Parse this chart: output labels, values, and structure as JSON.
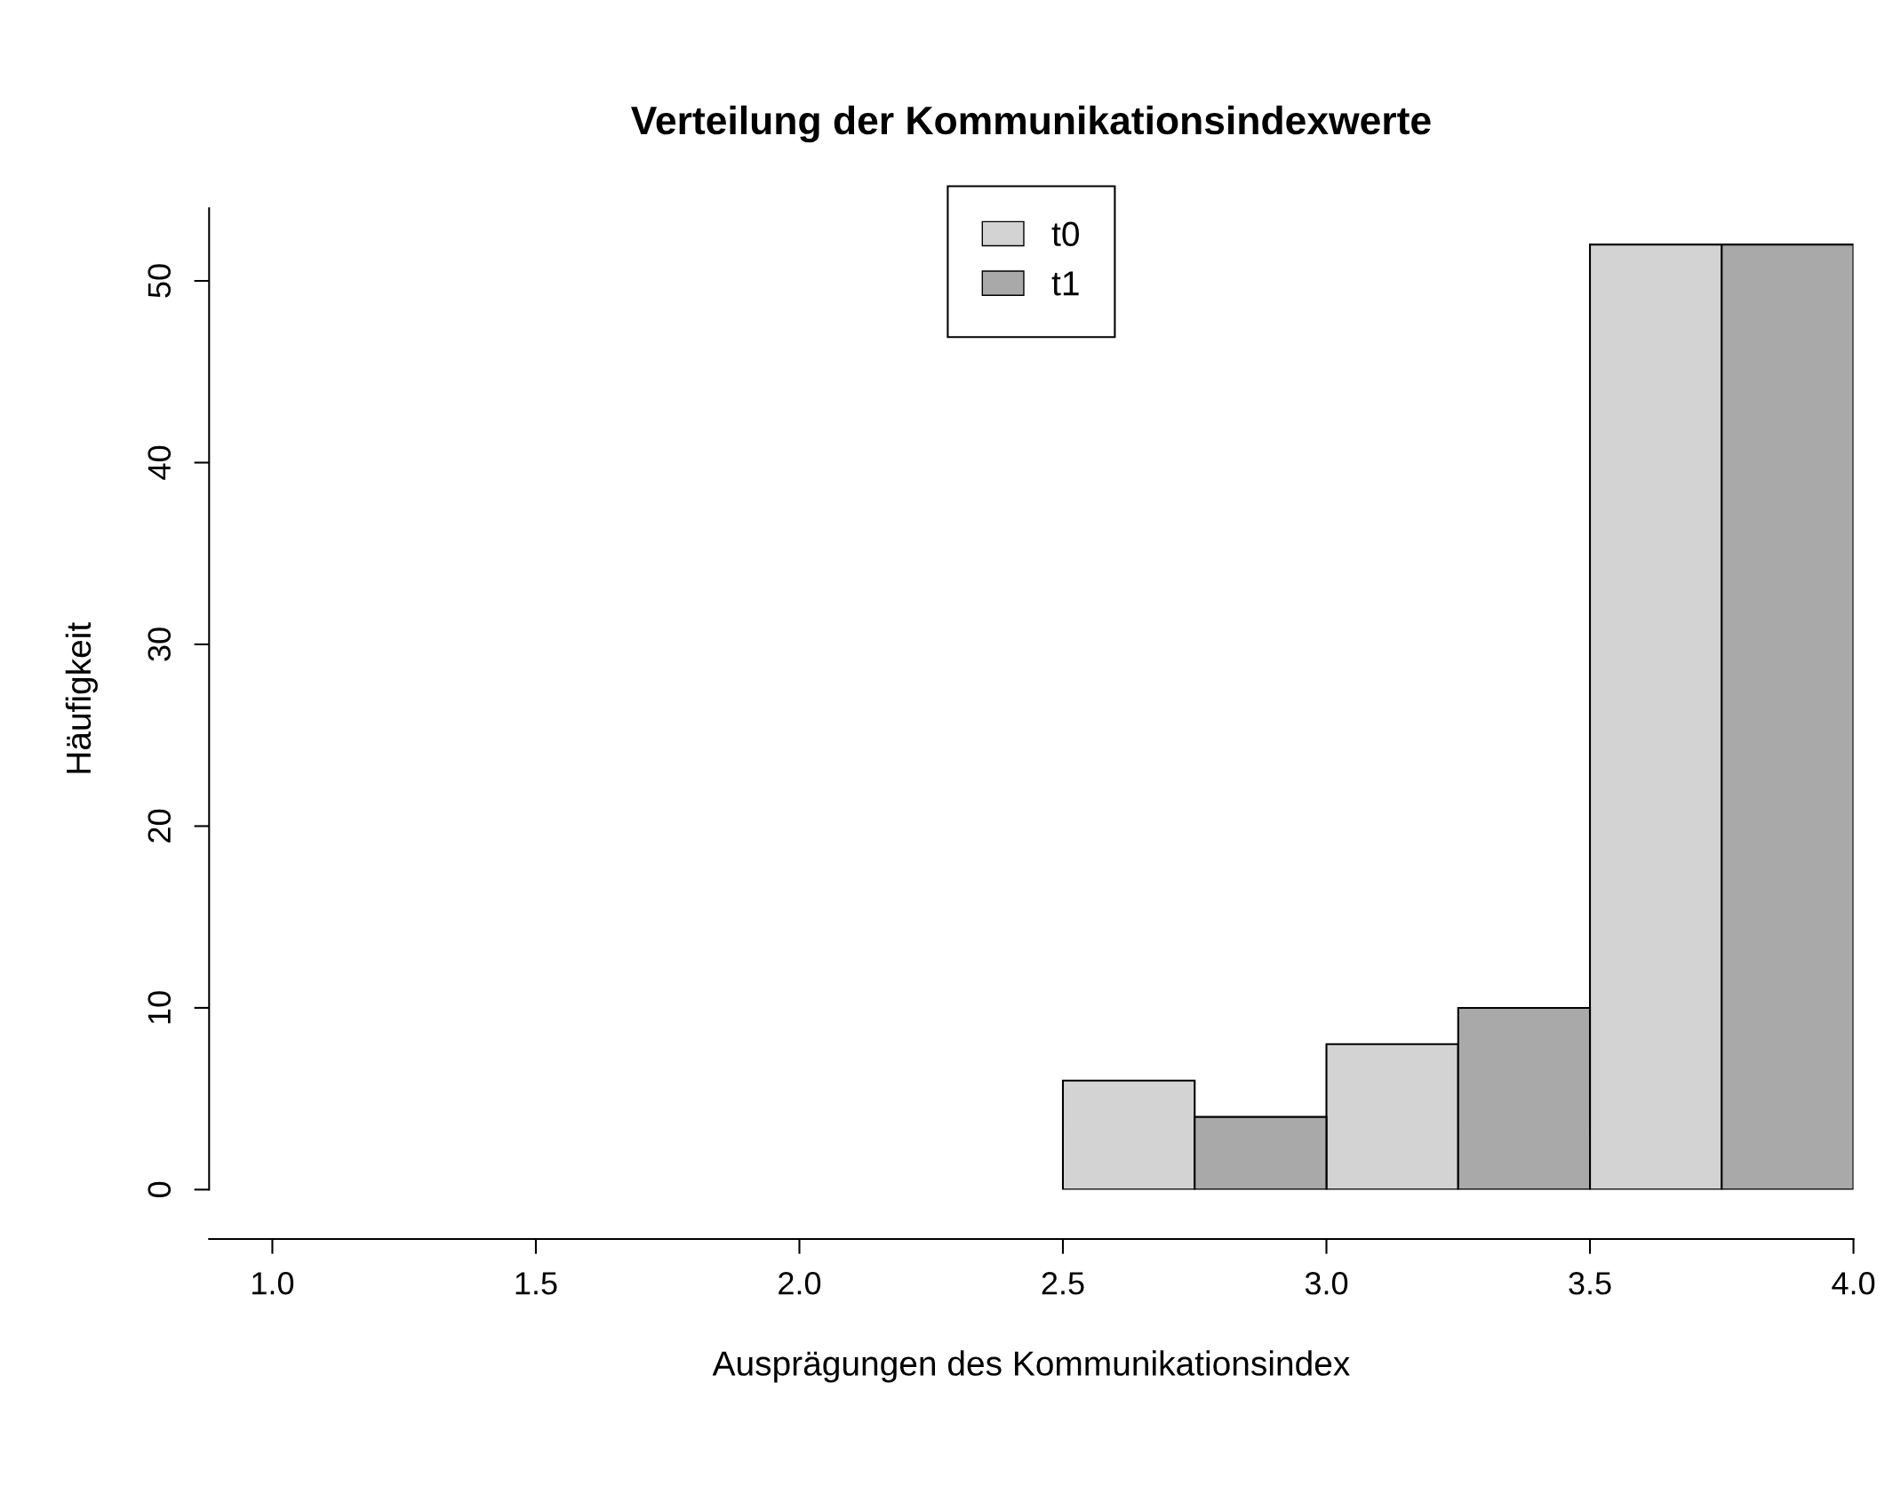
{
  "chart_data": {
    "type": "histogram",
    "title": "Verteilung der Kommunikationsindexwerte",
    "xlabel": "Ausprägungen des Kommunikationsindex",
    "ylabel": "Häufigkeit",
    "bins": [
      2.5,
      2.75,
      3.0,
      3.25,
      3.5,
      3.75,
      4.0
    ],
    "series": [
      {
        "name": "t0",
        "color": "#d3d3d3",
        "values": [
          6,
          null,
          8,
          null,
          52,
          null
        ]
      },
      {
        "name": "t1",
        "color": "#a9a9a9",
        "values": [
          null,
          4,
          null,
          10,
          null,
          52
        ]
      }
    ],
    "xlim": [
      0.88,
      4.0
    ],
    "ylim": [
      0,
      54
    ],
    "xticks": [
      {
        "value": 1.0,
        "label": "1.0"
      },
      1.5,
      {
        "value": 2.0,
        "label": "2.0"
      },
      2.5,
      {
        "value": 3.0,
        "label": "3.0"
      },
      3.5,
      {
        "value": 4.0,
        "label": "4.0"
      }
    ],
    "yticks": [
      0,
      10,
      20,
      30,
      40,
      50
    ],
    "legend": "top",
    "grid": false
  }
}
